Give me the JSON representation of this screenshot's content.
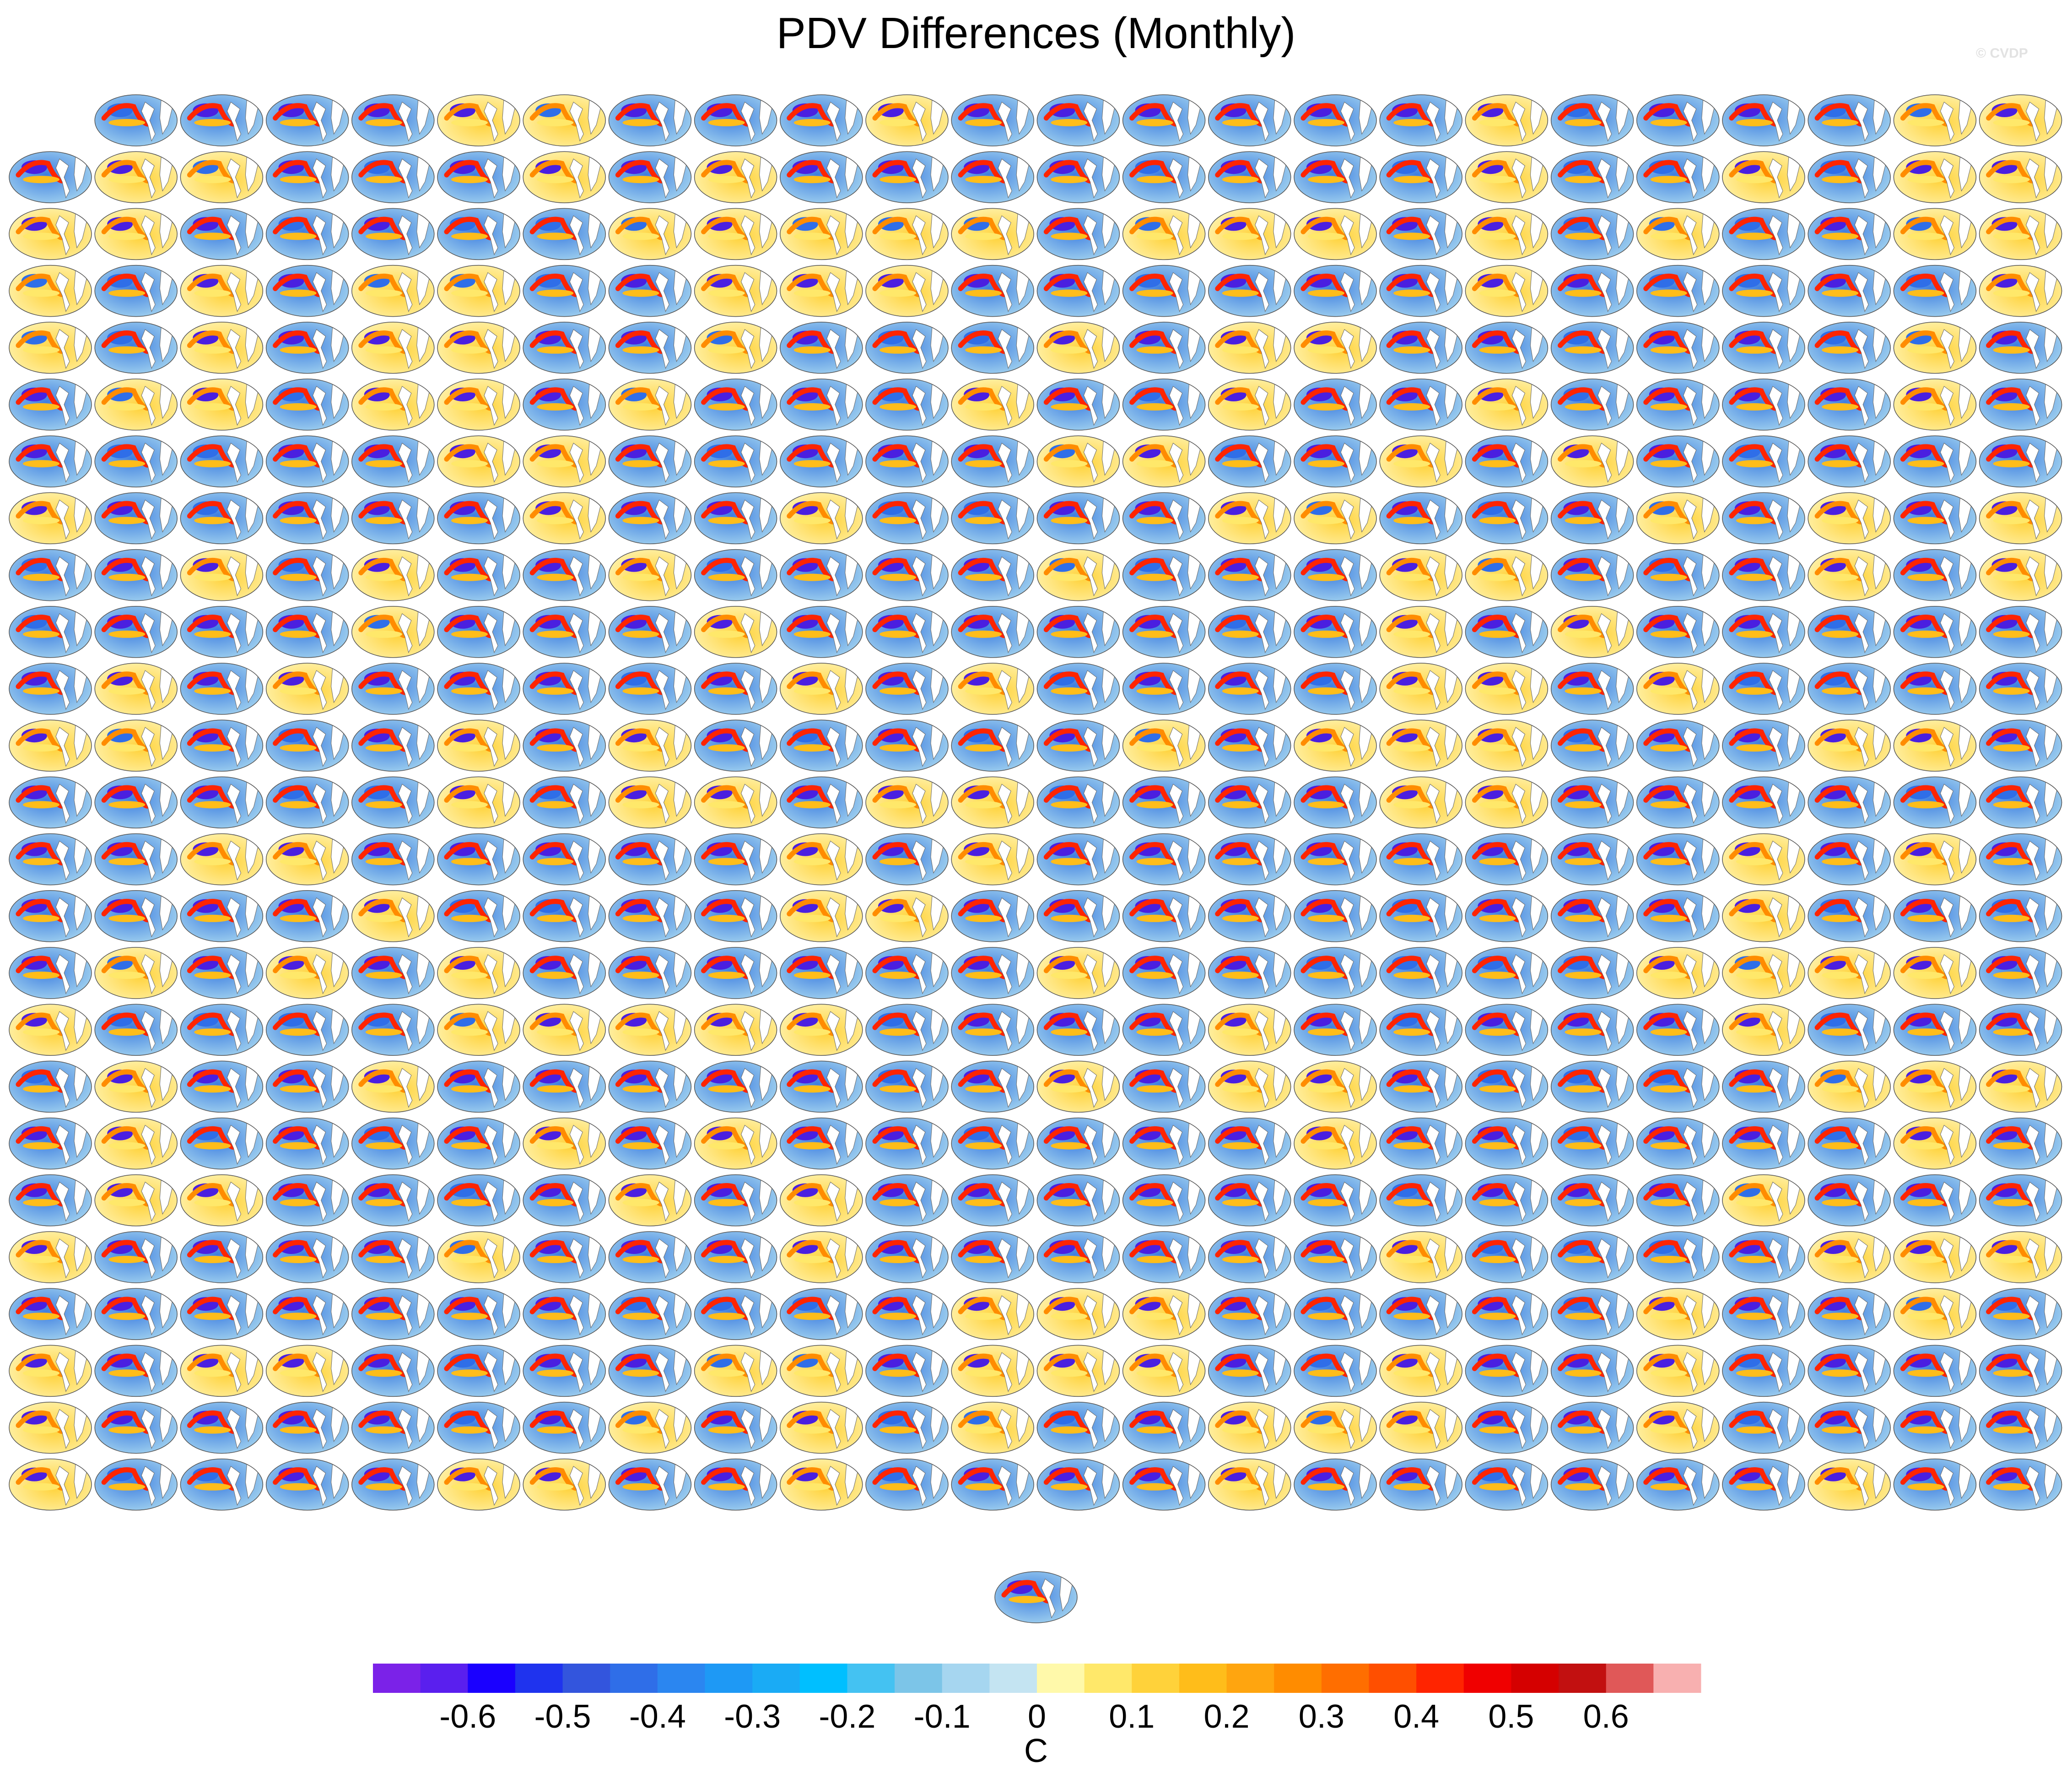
{
  "title": "PDV Differences (Monthly)",
  "watermark": "© CVDP",
  "chart_data": {
    "type": "heatmap",
    "description_of_panels": "Grid of small global map panels; each map shows a PDV pattern difference (Pacific horseshoe pattern) for one ensemble member.",
    "grid": {
      "rows": 25,
      "columns": 24,
      "first_row_columns": 23,
      "extra_bottom_panels": 1
    },
    "colorbar": {
      "unit_label": "C",
      "colors": [
        "#7b22e8",
        "#5a1fee",
        "#1a00ff",
        "#1f33ee",
        "#3355dd",
        "#2f6ee8",
        "#2b86f0",
        "#1e99f5",
        "#1aabf5",
        "#00bfff",
        "#44c2f2",
        "#7cc5e8",
        "#a6d6f0",
        "#c4e4f2",
        "#fff9aa",
        "#ffe86a",
        "#ffd23a",
        "#ffbd1a",
        "#ffa50f",
        "#ff8c00",
        "#ff6e00",
        "#ff4f00",
        "#ff2400",
        "#f00000",
        "#d50000",
        "#c21010",
        "#e05858",
        "#f8b0b0"
      ],
      "tick_labels": [
        "-0.6",
        "-0.5",
        "-0.4",
        "-0.3",
        "-0.2",
        "-0.1",
        "0",
        "0.1",
        "0.2",
        "0.3",
        "0.4",
        "0.5",
        "0.6"
      ],
      "tick_values": [
        -0.6,
        -0.5,
        -0.4,
        -0.3,
        -0.2,
        -0.1,
        0,
        0.1,
        0.2,
        0.3,
        0.4,
        0.5,
        0.6
      ]
    }
  }
}
